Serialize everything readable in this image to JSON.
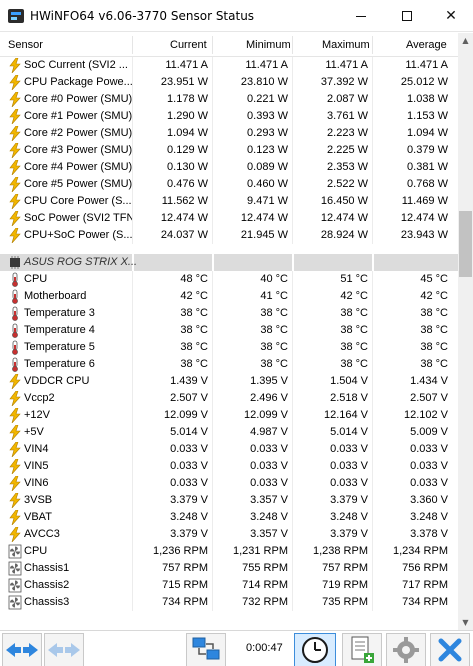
{
  "window": {
    "title": "HWiNFO64 v6.06-3770 Sensor Status",
    "minimize_glyph": "–",
    "close_glyph": "✕"
  },
  "header": {
    "sensor": "Sensor",
    "current": "Current",
    "minimum": "Minimum",
    "maximum": "Maximum",
    "average": "Average"
  },
  "rows_top": [
    {
      "icon": "lightning-icon",
      "name": "SoC Current (SVI2 ...",
      "current": "11.471 A",
      "minimum": "11.471 A",
      "maximum": "11.471 A",
      "average": "11.471 A"
    },
    {
      "icon": "lightning-icon",
      "name": "CPU Package Powe...",
      "current": "23.951 W",
      "minimum": "23.810 W",
      "maximum": "37.392 W",
      "average": "25.012 W"
    },
    {
      "icon": "lightning-icon",
      "name": "Core #0 Power (SMU)",
      "current": "1.178 W",
      "minimum": "0.221 W",
      "maximum": "2.087 W",
      "average": "1.038 W"
    },
    {
      "icon": "lightning-icon",
      "name": "Core #1 Power (SMU)",
      "current": "1.290 W",
      "minimum": "0.393 W",
      "maximum": "3.761 W",
      "average": "1.153 W"
    },
    {
      "icon": "lightning-icon",
      "name": "Core #2 Power (SMU)",
      "current": "1.094 W",
      "minimum": "0.293 W",
      "maximum": "2.223 W",
      "average": "1.094 W"
    },
    {
      "icon": "lightning-icon",
      "name": "Core #3 Power (SMU)",
      "current": "0.129 W",
      "minimum": "0.123 W",
      "maximum": "2.225 W",
      "average": "0.379 W"
    },
    {
      "icon": "lightning-icon",
      "name": "Core #4 Power (SMU)",
      "current": "0.130 W",
      "minimum": "0.089 W",
      "maximum": "2.353 W",
      "average": "0.381 W"
    },
    {
      "icon": "lightning-icon",
      "name": "Core #5 Power (SMU)",
      "current": "0.476 W",
      "minimum": "0.460 W",
      "maximum": "2.522 W",
      "average": "0.768 W"
    },
    {
      "icon": "lightning-icon",
      "name": "CPU Core Power (S...",
      "current": "11.562 W",
      "minimum": "9.471 W",
      "maximum": "16.450 W",
      "average": "11.469 W"
    },
    {
      "icon": "lightning-icon",
      "name": "SoC Power (SVI2 TFN)",
      "current": "12.474 W",
      "minimum": "12.474 W",
      "maximum": "12.474 W",
      "average": "12.474 W"
    },
    {
      "icon": "lightning-icon",
      "name": "CPU+SoC Power (S...",
      "current": "24.037 W",
      "minimum": "21.945 W",
      "maximum": "28.924 W",
      "average": "23.943 W"
    }
  ],
  "group": {
    "icon": "chip-icon",
    "name": "ASUS ROG STRIX X..."
  },
  "rows_bottom": [
    {
      "icon": "thermometer-icon",
      "name": "CPU",
      "current": "48 °C",
      "minimum": "40 °C",
      "maximum": "51 °C",
      "average": "45 °C"
    },
    {
      "icon": "thermometer-icon",
      "name": "Motherboard",
      "current": "42 °C",
      "minimum": "41 °C",
      "maximum": "42 °C",
      "average": "42 °C"
    },
    {
      "icon": "thermometer-icon",
      "name": "Temperature 3",
      "current": "38 °C",
      "minimum": "38 °C",
      "maximum": "38 °C",
      "average": "38 °C"
    },
    {
      "icon": "thermometer-icon",
      "name": "Temperature 4",
      "current": "38 °C",
      "minimum": "38 °C",
      "maximum": "38 °C",
      "average": "38 °C"
    },
    {
      "icon": "thermometer-icon",
      "name": "Temperature 5",
      "current": "38 °C",
      "minimum": "38 °C",
      "maximum": "38 °C",
      "average": "38 °C"
    },
    {
      "icon": "thermometer-icon",
      "name": "Temperature 6",
      "current": "38 °C",
      "minimum": "38 °C",
      "maximum": "38 °C",
      "average": "38 °C"
    },
    {
      "icon": "lightning-icon",
      "name": "VDDCR CPU",
      "current": "1.439 V",
      "minimum": "1.395 V",
      "maximum": "1.504 V",
      "average": "1.434 V"
    },
    {
      "icon": "lightning-icon",
      "name": "Vccp2",
      "current": "2.507 V",
      "minimum": "2.496 V",
      "maximum": "2.518 V",
      "average": "2.507 V"
    },
    {
      "icon": "lightning-icon",
      "name": "+12V",
      "current": "12.099 V",
      "minimum": "12.099 V",
      "maximum": "12.164 V",
      "average": "12.102 V"
    },
    {
      "icon": "lightning-icon",
      "name": "+5V",
      "current": "5.014 V",
      "minimum": "4.987 V",
      "maximum": "5.014 V",
      "average": "5.009 V"
    },
    {
      "icon": "lightning-icon",
      "name": "VIN4",
      "current": "0.033 V",
      "minimum": "0.033 V",
      "maximum": "0.033 V",
      "average": "0.033 V"
    },
    {
      "icon": "lightning-icon",
      "name": "VIN5",
      "current": "0.033 V",
      "minimum": "0.033 V",
      "maximum": "0.033 V",
      "average": "0.033 V"
    },
    {
      "icon": "lightning-icon",
      "name": "VIN6",
      "current": "0.033 V",
      "minimum": "0.033 V",
      "maximum": "0.033 V",
      "average": "0.033 V"
    },
    {
      "icon": "lightning-icon",
      "name": "3VSB",
      "current": "3.379 V",
      "minimum": "3.357 V",
      "maximum": "3.379 V",
      "average": "3.360 V"
    },
    {
      "icon": "lightning-icon",
      "name": "VBAT",
      "current": "3.248 V",
      "minimum": "3.248 V",
      "maximum": "3.248 V",
      "average": "3.248 V"
    },
    {
      "icon": "lightning-icon",
      "name": "AVCC3",
      "current": "3.379 V",
      "minimum": "3.357 V",
      "maximum": "3.379 V",
      "average": "3.378 V"
    },
    {
      "icon": "fan-icon",
      "name": "CPU",
      "current": "1,236 RPM",
      "minimum": "1,231 RPM",
      "maximum": "1,238 RPM",
      "average": "1,234 RPM"
    },
    {
      "icon": "fan-icon",
      "name": "Chassis1",
      "current": "757 RPM",
      "minimum": "755 RPM",
      "maximum": "757 RPM",
      "average": "756 RPM"
    },
    {
      "icon": "fan-icon",
      "name": "Chassis2",
      "current": "715 RPM",
      "minimum": "714 RPM",
      "maximum": "719 RPM",
      "average": "717 RPM"
    },
    {
      "icon": "fan-icon",
      "name": "Chassis3",
      "current": "734 RPM",
      "minimum": "732 RPM",
      "maximum": "735 RPM",
      "average": "734 RPM"
    }
  ],
  "toolbar": {
    "timer": "0:00:47"
  },
  "colors": {
    "lightning": "#f2b600",
    "thermometer": "#c73030",
    "group_bg": "#dcdcdc",
    "toolbar_blue": "#2e86de"
  }
}
